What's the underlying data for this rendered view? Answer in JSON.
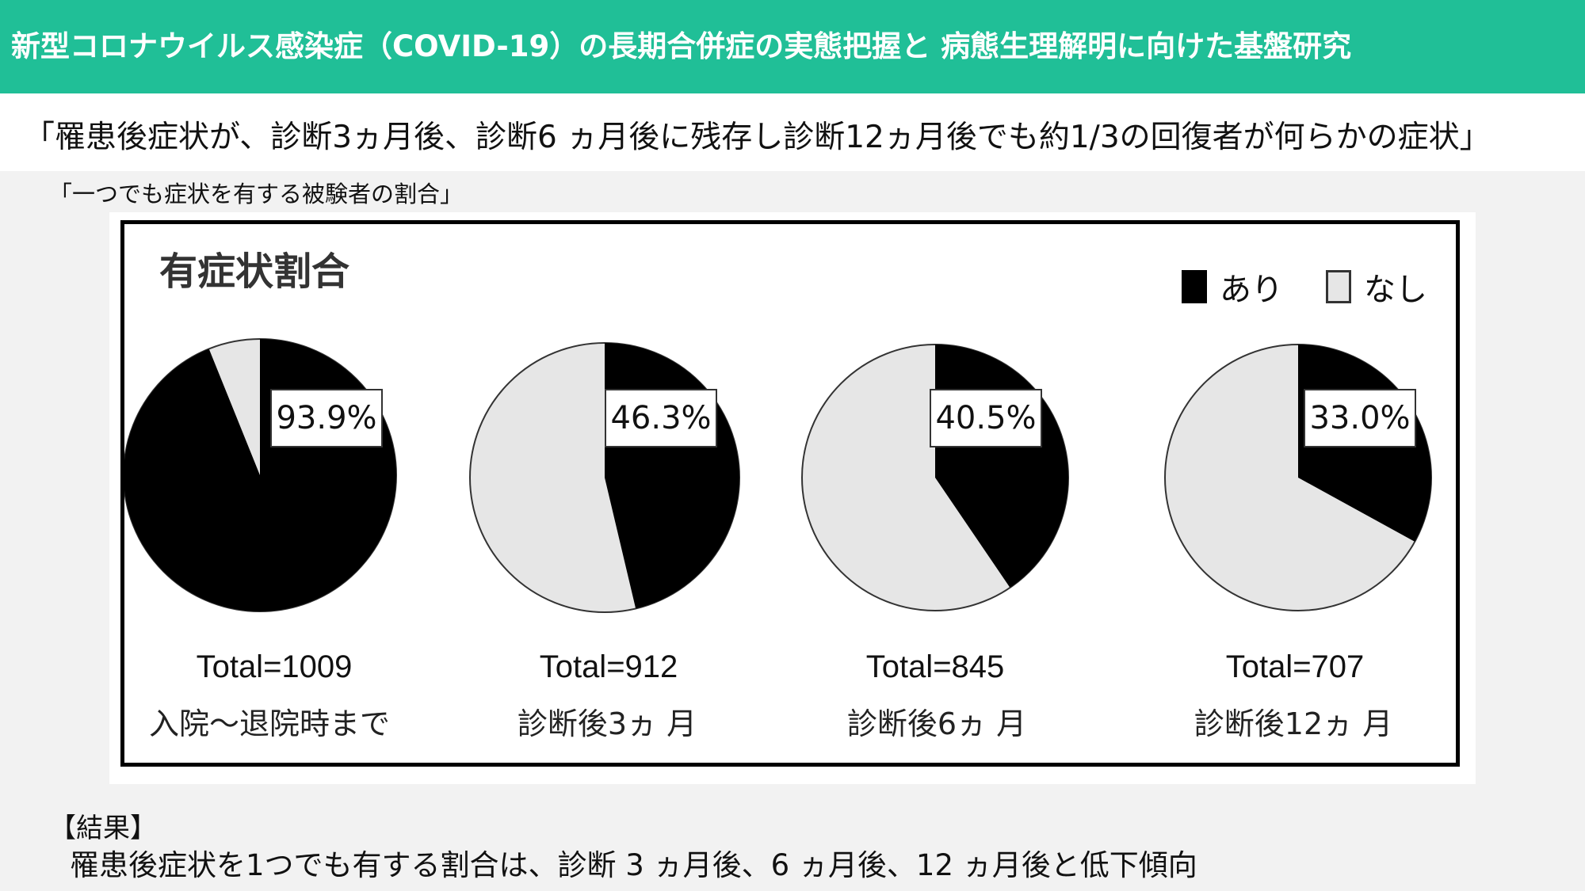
{
  "header": {
    "title": "新型コロナウイルス感染症（COVID-19）の長期合併症の実態把握と 病態生理解明に向けた基盤研究",
    "bg_color": "#20bf97"
  },
  "subtitle": "「罹患後症状が、診断3ヵ月後、診断6 ヵ月後に残存し診断12ヵ月後でも約1/3の回復者が何らかの症状」",
  "caption": "「一つでも症状を有する被験者の割合」",
  "chart_data": {
    "type": "pie",
    "title": "有症状割合",
    "legend": [
      "あり",
      "なし"
    ],
    "legend_position": "top-right",
    "colors": {
      "あり": "#000000",
      "なし": "#e6e6e6"
    },
    "pies": [
      {
        "value_label": "93.9%",
        "yes_percent": 93.9,
        "total": "Total=1009",
        "period": "入院～退院時まで"
      },
      {
        "value_label": "46.3%",
        "yes_percent": 46.3,
        "total": "Total=912",
        "period": "診断後3ヵ 月"
      },
      {
        "value_label": "40.5%",
        "yes_percent": 40.5,
        "total": "Total=845",
        "period": "診断後6ヵ 月"
      },
      {
        "value_label": "33.0%",
        "yes_percent": 33.0,
        "total": "Total=707",
        "period": "診断後12ヵ 月"
      }
    ]
  },
  "results": {
    "heading": "【結果】",
    "text": "罹患後症状を1つでも有する割合は、診断 3 ヵ月後、6 ヵ月後、12 ヵ月後と低下傾向"
  }
}
